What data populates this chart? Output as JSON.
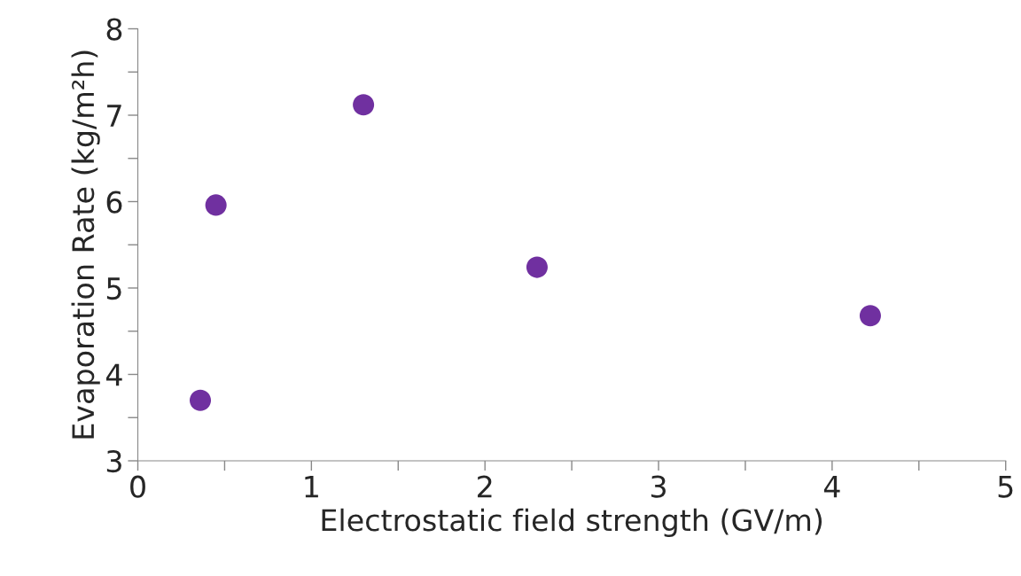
{
  "chart_data": {
    "type": "scatter",
    "xlabel": "Electrostatic field strength (GV/m)",
    "ylabel": "Evaporation Rate (kg/m²h)",
    "x": [
      0.36,
      0.45,
      1.3,
      2.3,
      4.22
    ],
    "values": [
      3.7,
      5.96,
      7.12,
      5.24,
      4.68
    ],
    "color": "#7030a0",
    "marker": "circle",
    "grid": false,
    "xlim": [
      0,
      5
    ],
    "ylim": [
      3,
      8
    ],
    "xticks": [
      0,
      {
        "value": 0.5,
        "label": null
      },
      1,
      {
        "value": 1.5,
        "label": null
      },
      2,
      {
        "value": 2.5,
        "label": null
      },
      3,
      {
        "value": 3.5,
        "label": null
      },
      4,
      {
        "value": 4.5,
        "label": null
      },
      5
    ],
    "yticks": [
      3,
      {
        "value": 3.5,
        "label": null
      },
      4,
      {
        "value": 4.5,
        "label": null
      },
      5,
      {
        "value": 5.5,
        "label": null
      },
      6,
      {
        "value": 6.5,
        "label": null
      },
      7,
      {
        "value": 7.5,
        "label": null
      },
      8
    ]
  }
}
